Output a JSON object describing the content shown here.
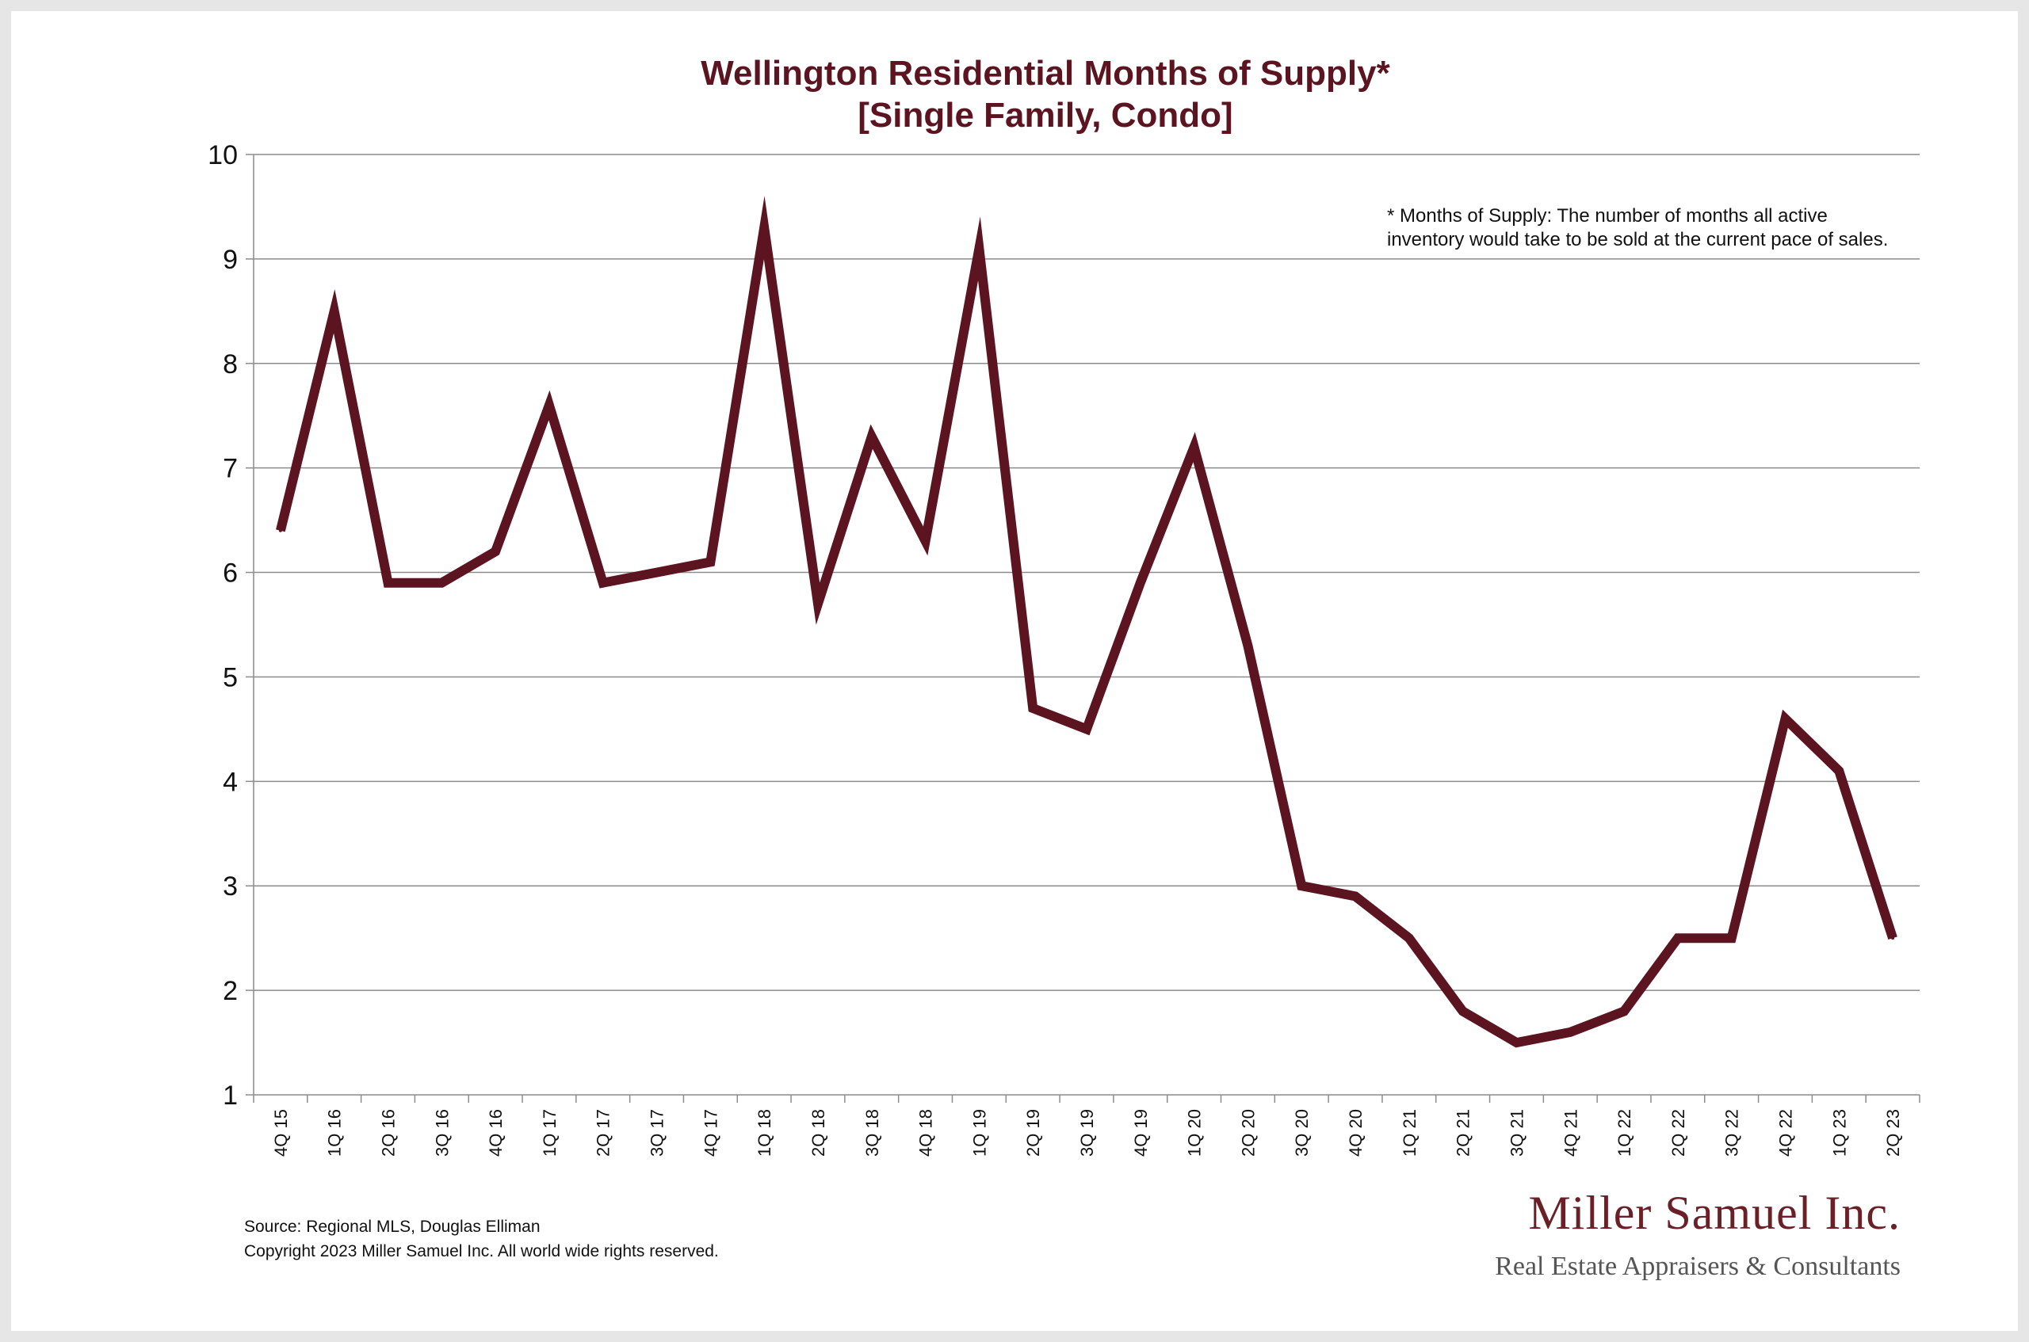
{
  "chart_data": {
    "type": "line",
    "title": "Wellington Residential Months of Supply*",
    "subtitle": "[Single Family, Condo]",
    "xlabel": "",
    "ylabel": "",
    "ylim": [
      1,
      10
    ],
    "yticks": [
      "1",
      "2",
      "3",
      "4",
      "5",
      "6",
      "7",
      "8",
      "9",
      "10"
    ],
    "grid": true,
    "categories": [
      "4Q 15",
      "1Q 16",
      "2Q 16",
      "3Q 16",
      "4Q 16",
      "1Q 17",
      "2Q 17",
      "3Q 17",
      "4Q 17",
      "1Q 18",
      "2Q 18",
      "3Q 18",
      "4Q 18",
      "1Q 19",
      "2Q 19",
      "3Q 19",
      "4Q 19",
      "1Q 20",
      "2Q 20",
      "3Q 20",
      "4Q 20",
      "1Q 21",
      "2Q 21",
      "3Q 21",
      "4Q 21",
      "1Q 22",
      "2Q 22",
      "3Q 22",
      "4Q 22",
      "1Q 23",
      "2Q 23"
    ],
    "series": [
      {
        "color": "#5c1420",
        "values": [
          6.4,
          8.5,
          5.9,
          5.9,
          6.2,
          7.6,
          5.9,
          6.0,
          6.1,
          9.3,
          5.7,
          7.3,
          6.3,
          9.1,
          4.7,
          4.5,
          5.9,
          7.2,
          5.3,
          3.0,
          2.9,
          2.5,
          1.8,
          1.5,
          1.6,
          1.8,
          2.5,
          2.5,
          4.6,
          4.1,
          2.5
        ]
      }
    ],
    "annotation": {
      "line1": "* Months of Supply: The number of months all active",
      "line2": "inventory would take to be sold at the current pace of sales."
    }
  },
  "footer": {
    "source": "Source: Regional MLS, Douglas Elliman",
    "copyright": "Copyright 2023 Miller Samuel Inc.  All world wide rights reserved."
  },
  "logo": {
    "name": "Miller Samuel Inc.",
    "tagline": "Real Estate Appraisers & Consultants"
  }
}
